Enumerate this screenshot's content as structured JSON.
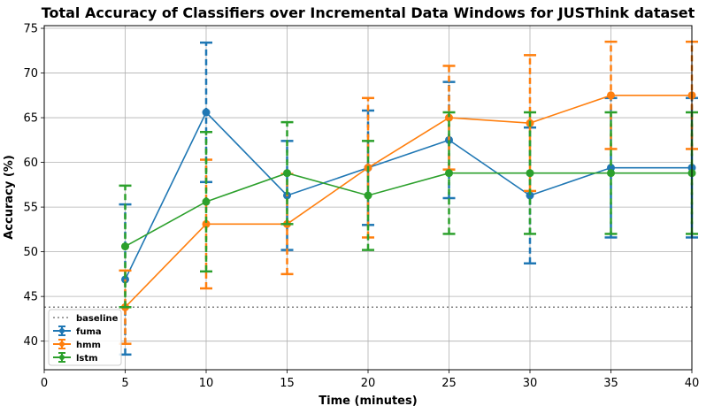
{
  "chart_data": {
    "type": "line",
    "title": "Total Accuracy of Classifiers over Incremental Data Windows for JUSThink dataset",
    "xlabel": "Time (minutes)",
    "ylabel": "Accuracy (%)",
    "xlim": [
      0,
      40
    ],
    "ylim": [
      36.8,
      75.3
    ],
    "xticks": [
      0,
      5,
      10,
      15,
      20,
      25,
      30,
      35,
      40
    ],
    "yticks": [
      40,
      45,
      50,
      55,
      60,
      65,
      70,
      75
    ],
    "grid": true,
    "legend_position": "lower-left",
    "x": [
      5,
      10,
      15,
      20,
      25,
      30,
      35,
      40
    ],
    "baseline": {
      "name": "baseline",
      "value": 43.8,
      "color": "#808080"
    },
    "series": [
      {
        "name": "fuma",
        "color": "#1f77b4",
        "values": [
          46.9,
          65.6,
          56.3,
          59.4,
          62.5,
          56.3,
          59.4,
          59.4
        ],
        "errors": [
          8.4,
          7.8,
          6.1,
          6.4,
          6.5,
          7.6,
          7.8,
          7.8
        ]
      },
      {
        "name": "hmm",
        "color": "#ff7f0e",
        "values": [
          43.8,
          53.1,
          53.1,
          59.4,
          65.0,
          64.4,
          67.5,
          67.5
        ],
        "errors": [
          4.1,
          7.2,
          5.6,
          7.8,
          5.8,
          7.6,
          6.0,
          6.0
        ]
      },
      {
        "name": "lstm",
        "color": "#2ca02c",
        "values": [
          50.6,
          55.6,
          58.8,
          56.3,
          58.8,
          58.8,
          58.8,
          58.8
        ],
        "errors": [
          6.8,
          7.8,
          5.7,
          6.1,
          6.8,
          6.8,
          6.8,
          6.8
        ]
      }
    ]
  }
}
